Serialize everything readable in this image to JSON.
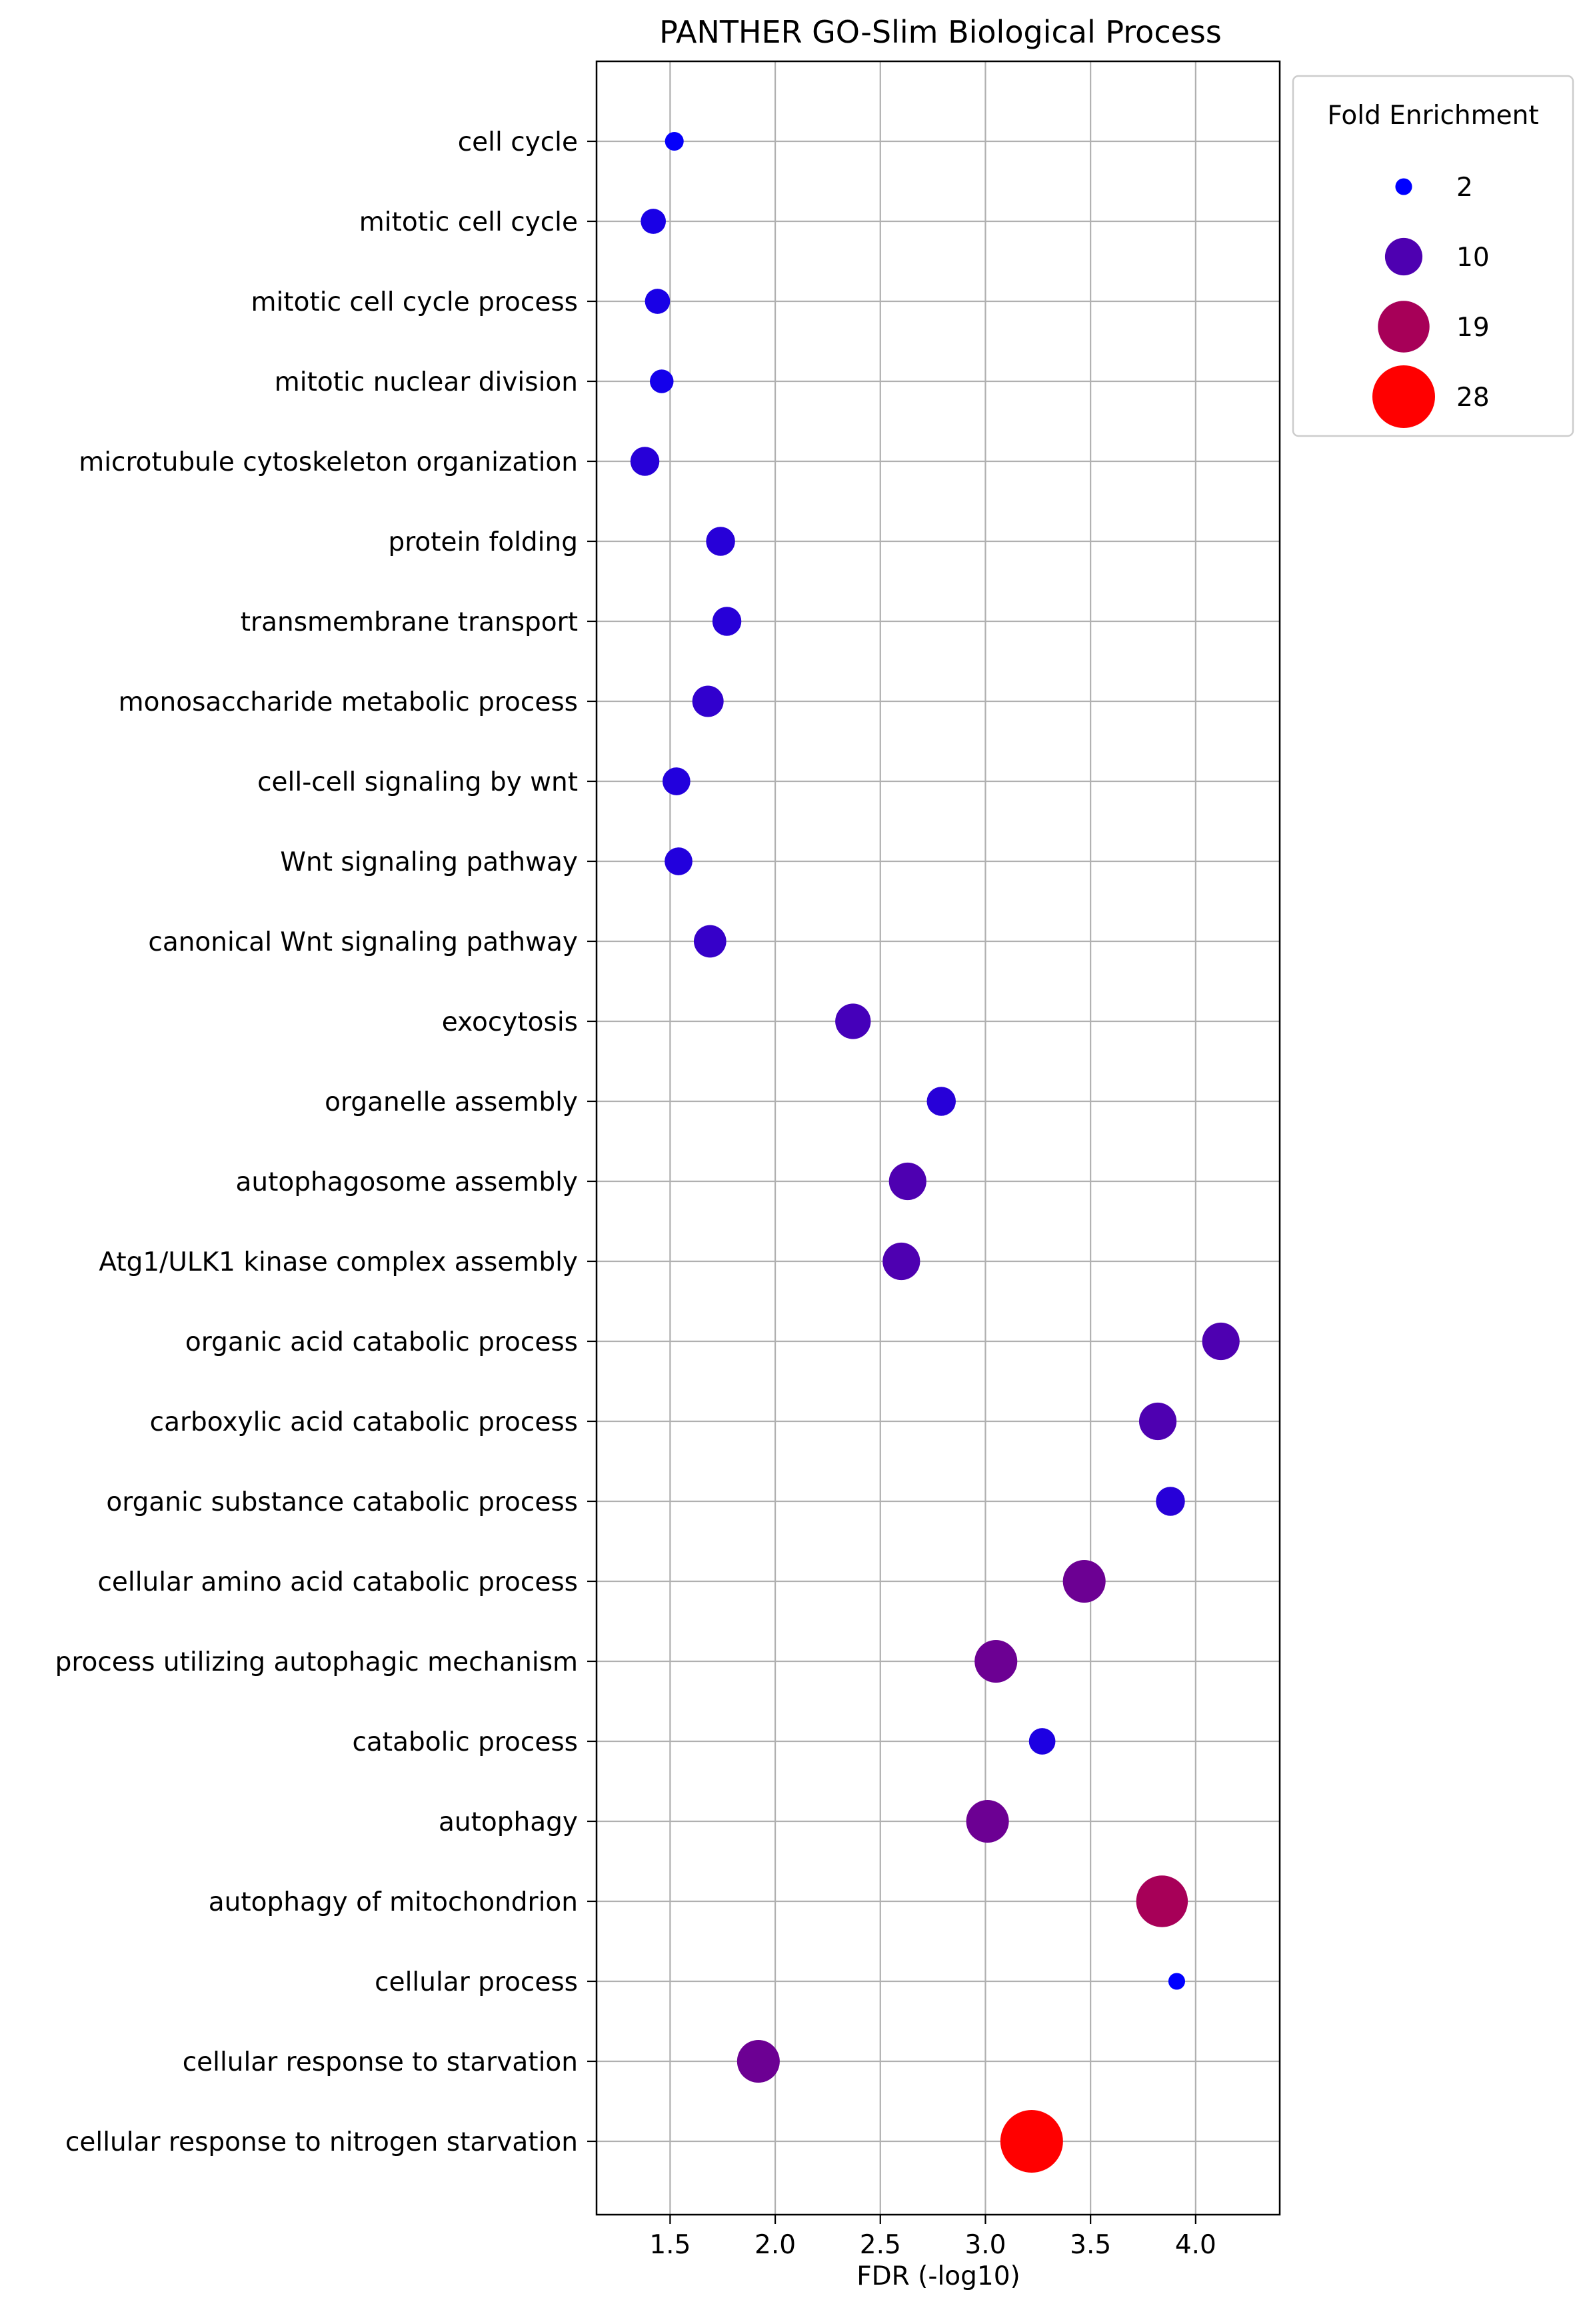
{
  "chart_data": {
    "type": "scatter",
    "title": "PANTHER GO-Slim Biological Process",
    "xlabel": "FDR (-log10)",
    "ylabel": "",
    "xlim": [
      1.15,
      4.4
    ],
    "xticks": [
      "1.5",
      "2.0",
      "2.5",
      "3.0",
      "3.5",
      "4.0"
    ],
    "grid": true,
    "legend": {
      "title": "Fold Enrichment",
      "placement": "upper-right-outside",
      "entries": [
        "2",
        "10",
        "19",
        "28"
      ]
    },
    "colors": {
      "low": "#0000ff",
      "high": "#ff0000"
    },
    "categories": [
      "cell cycle",
      "mitotic cell cycle",
      "mitotic cell cycle process",
      "mitotic nuclear division",
      "microtubule cytoskeleton organization",
      "protein folding",
      "transmembrane transport",
      "monosaccharide metabolic process",
      "cell-cell signaling by wnt",
      "Wnt signaling pathway",
      "canonical Wnt signaling pathway",
      "exocytosis",
      "organelle assembly",
      "autophagosome assembly",
      "Atg1/ULK1 kinase complex assembly",
      "organic acid catabolic process",
      "carboxylic acid catabolic process",
      "organic substance catabolic process",
      "cellular amino acid catabolic process",
      "process utilizing autophagic mechanism",
      "catabolic process",
      "autophagy",
      "autophagy of mitochondrion",
      "cellular process",
      "cellular response to starvation",
      "cellular response to nitrogen starvation"
    ],
    "x": [
      1.52,
      1.42,
      1.44,
      1.46,
      1.38,
      1.74,
      1.77,
      1.68,
      1.53,
      1.54,
      1.69,
      2.37,
      2.79,
      2.63,
      2.6,
      4.12,
      3.82,
      3.88,
      3.47,
      3.05,
      3.27,
      3.01,
      3.84,
      3.91,
      1.92,
      3.22
    ],
    "fold_enrichment": [
      2.5,
      4.5,
      4.5,
      4,
      6,
      6,
      6,
      7,
      5.5,
      5.5,
      7.5,
      9,
      6,
      10,
      10,
      10,
      10,
      6,
      13,
      13,
      5,
      13,
      19,
      2,
      13,
      28
    ]
  }
}
